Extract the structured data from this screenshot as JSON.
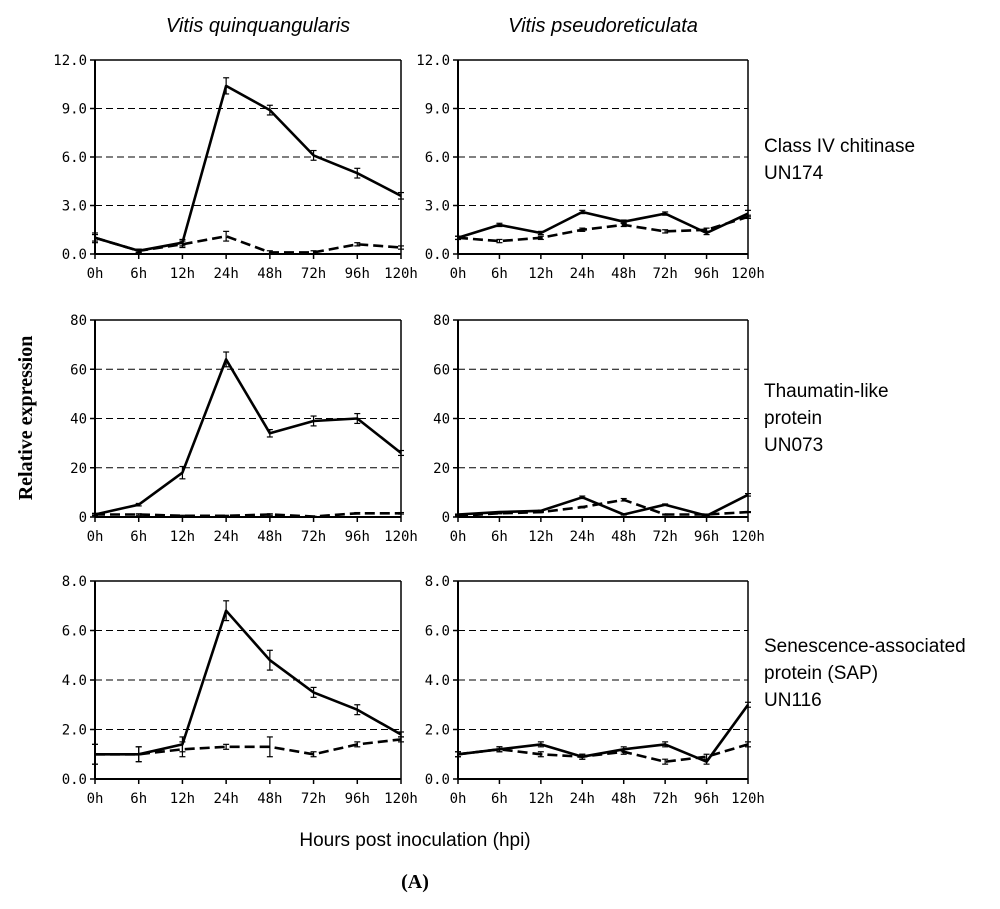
{
  "figure": {
    "col_titles": [
      "Vitis quinquangularis",
      "Vitis pseudoreticulata"
    ],
    "row_labels": [
      [
        "Class IV chitinase",
        "UN174"
      ],
      [
        "Thaumatin-like",
        "protein",
        "UN073"
      ],
      [
        "Senescence-associated",
        "protein (SAP)",
        "UN116"
      ]
    ],
    "ylabel": "Relative expression",
    "xlabel": "Hours post inoculation (hpi)",
    "panel_label": "(A)"
  },
  "colors": {
    "line": "#000000",
    "grid": "#000000",
    "axis": "#000000",
    "background": "#ffffff"
  },
  "chart_data": [
    {
      "type": "line",
      "title": "Vitis quinquangularis - Class IV chitinase UN174",
      "categories": [
        "0h",
        "6h",
        "12h",
        "24h",
        "48h",
        "72h",
        "96h",
        "120h"
      ],
      "yticks": [
        "0.0",
        "3.0",
        "6.0",
        "9.0",
        "12.0"
      ],
      "ylim": [
        0,
        12
      ],
      "series": [
        {
          "name": "solid",
          "style": "solid",
          "values": [
            1.0,
            0.2,
            0.7,
            10.4,
            8.9,
            6.1,
            5.0,
            3.6
          ],
          "errors": [
            0.3,
            0.1,
            0.2,
            0.5,
            0.3,
            0.3,
            0.3,
            0.2
          ]
        },
        {
          "name": "dashed",
          "style": "dashed",
          "values": [
            1.0,
            0.2,
            0.6,
            1.1,
            0.1,
            0.1,
            0.6,
            0.4
          ],
          "errors": [
            0.2,
            0.1,
            0.2,
            0.3,
            0.1,
            0.1,
            0.1,
            0.1
          ]
        }
      ]
    },
    {
      "type": "line",
      "title": "Vitis pseudoreticulata - Class IV chitinase UN174",
      "categories": [
        "0h",
        "6h",
        "12h",
        "24h",
        "48h",
        "72h",
        "96h",
        "120h"
      ],
      "yticks": [
        "0.0",
        "3.0",
        "6.0",
        "9.0",
        "12.0"
      ],
      "ylim": [
        0,
        12
      ],
      "series": [
        {
          "name": "solid",
          "style": "solid",
          "values": [
            1.0,
            1.8,
            1.3,
            2.6,
            2.0,
            2.5,
            1.3,
            2.5
          ],
          "errors": [
            0.1,
            0.1,
            0.1,
            0.1,
            0.1,
            0.1,
            0.1,
            0.2
          ]
        },
        {
          "name": "dashed",
          "style": "dashed",
          "values": [
            1.0,
            0.8,
            1.0,
            1.5,
            1.8,
            1.4,
            1.5,
            2.3
          ],
          "errors": [
            0.1,
            0.1,
            0.1,
            0.1,
            0.1,
            0.1,
            0.1,
            0.1
          ]
        }
      ]
    },
    {
      "type": "line",
      "title": "Vitis quinquangularis - Thaumatin-like protein UN073",
      "categories": [
        "0h",
        "6h",
        "12h",
        "24h",
        "48h",
        "72h",
        "96h",
        "120h"
      ],
      "yticks": [
        "0",
        "20",
        "40",
        "60",
        "80"
      ],
      "ylim": [
        0,
        80
      ],
      "series": [
        {
          "name": "solid",
          "style": "solid",
          "values": [
            1,
            5,
            18,
            64,
            34,
            39,
            40,
            26
          ],
          "errors": [
            0.5,
            0.5,
            2.5,
            3,
            1.5,
            2,
            2,
            1
          ]
        },
        {
          "name": "dashed",
          "style": "dashed",
          "values": [
            1,
            1,
            0.5,
            0.5,
            1,
            0.2,
            1.5,
            1.5
          ],
          "errors": [
            0.3,
            0.3,
            0.2,
            0.2,
            0.3,
            0.1,
            0.3,
            0.3
          ]
        }
      ]
    },
    {
      "type": "line",
      "title": "Vitis pseudoreticulata - Thaumatin-like protein UN073",
      "categories": [
        "0h",
        "6h",
        "12h",
        "24h",
        "48h",
        "72h",
        "96h",
        "120h"
      ],
      "yticks": [
        "0",
        "20",
        "40",
        "60",
        "80"
      ],
      "ylim": [
        0,
        80
      ],
      "series": [
        {
          "name": "solid",
          "style": "solid",
          "values": [
            1,
            2,
            2.5,
            8,
            1,
            5,
            0.5,
            9
          ],
          "errors": [
            0.2,
            0.2,
            0.3,
            0.5,
            0.2,
            0.3,
            0.2,
            0.5
          ]
        },
        {
          "name": "dashed",
          "style": "dashed",
          "values": [
            0.5,
            1.5,
            2,
            4,
            7,
            1,
            1,
            2
          ],
          "errors": [
            0.2,
            0.2,
            0.2,
            0.3,
            0.5,
            0.2,
            0.2,
            0.2
          ]
        }
      ]
    },
    {
      "type": "line",
      "title": "Vitis quinquangularis - Senescence-associated protein (SAP) UN116",
      "categories": [
        "0h",
        "6h",
        "12h",
        "24h",
        "48h",
        "72h",
        "96h",
        "120h"
      ],
      "yticks": [
        "0.0",
        "2.0",
        "4.0",
        "6.0",
        "8.0"
      ],
      "ylim": [
        0,
        8
      ],
      "series": [
        {
          "name": "solid",
          "style": "solid",
          "values": [
            1.0,
            1.0,
            1.4,
            6.8,
            4.8,
            3.5,
            2.8,
            1.8
          ],
          "errors": [
            0.4,
            0.3,
            0.3,
            0.4,
            0.4,
            0.2,
            0.2,
            0.1
          ]
        },
        {
          "name": "dashed",
          "style": "dashed",
          "values": [
            1.0,
            1.0,
            1.2,
            1.3,
            1.3,
            1.0,
            1.4,
            1.6
          ],
          "errors": [
            0.4,
            0.3,
            0.3,
            0.1,
            0.4,
            0.1,
            0.1,
            0.1
          ]
        }
      ]
    },
    {
      "type": "line",
      "title": "Vitis pseudoreticulata - Senescence-associated protein (SAP) UN116",
      "categories": [
        "0h",
        "6h",
        "12h",
        "24h",
        "48h",
        "72h",
        "96h",
        "120h"
      ],
      "yticks": [
        "0.0",
        "2.0",
        "4.0",
        "6.0",
        "8.0"
      ],
      "ylim": [
        0,
        8
      ],
      "series": [
        {
          "name": "solid",
          "style": "solid",
          "values": [
            1.0,
            1.2,
            1.4,
            0.9,
            1.2,
            1.4,
            0.7,
            3.0
          ],
          "errors": [
            0.1,
            0.1,
            0.1,
            0.1,
            0.1,
            0.1,
            0.1,
            0.1
          ]
        },
        {
          "name": "dashed",
          "style": "dashed",
          "values": [
            1.0,
            1.2,
            1.0,
            0.9,
            1.1,
            0.7,
            0.9,
            1.4
          ],
          "errors": [
            0.1,
            0.1,
            0.1,
            0.1,
            0.1,
            0.1,
            0.1,
            0.1
          ]
        }
      ]
    }
  ]
}
